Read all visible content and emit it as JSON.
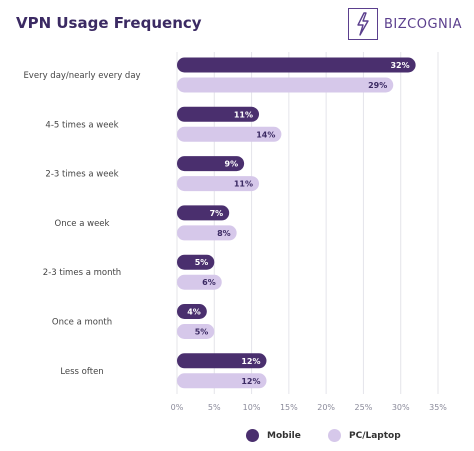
{
  "title": "VPN Usage Frequency",
  "logo_text": "BIZCOGNIA",
  "colors": {
    "mobile": "#4a2f6e",
    "pc": "#d6c8ea",
    "grid": "#e4e4ea",
    "title": "#3b2a63"
  },
  "legend": {
    "mobile": "Mobile",
    "pc": "PC/Laptop"
  },
  "chart_data": {
    "type": "bar",
    "orientation": "horizontal",
    "title": "VPN Usage Frequency",
    "categories": [
      "Every day/nearly every day",
      "4-5 times a week",
      "2-3 times a week",
      "Once a week",
      "2-3 times a month",
      "Once a month",
      "Less often"
    ],
    "series": [
      {
        "name": "Mobile",
        "values": [
          32,
          11,
          9,
          7,
          5,
          4,
          12
        ],
        "labels": [
          "32%",
          "11%",
          "9%",
          "7%",
          "5%",
          "4%",
          "12%"
        ]
      },
      {
        "name": "PC/Laptop",
        "values": [
          29,
          14,
          11,
          8,
          6,
          5,
          12
        ],
        "labels": [
          "29%",
          "14%",
          "11%",
          "8%",
          "6%",
          "5%",
          "12%"
        ]
      }
    ],
    "xlim": [
      0,
      35
    ],
    "xticks": [
      "0%",
      "5%",
      "10%",
      "15%",
      "20%",
      "25%",
      "30%",
      "35%"
    ],
    "grid": true,
    "legend_position": "bottom"
  }
}
